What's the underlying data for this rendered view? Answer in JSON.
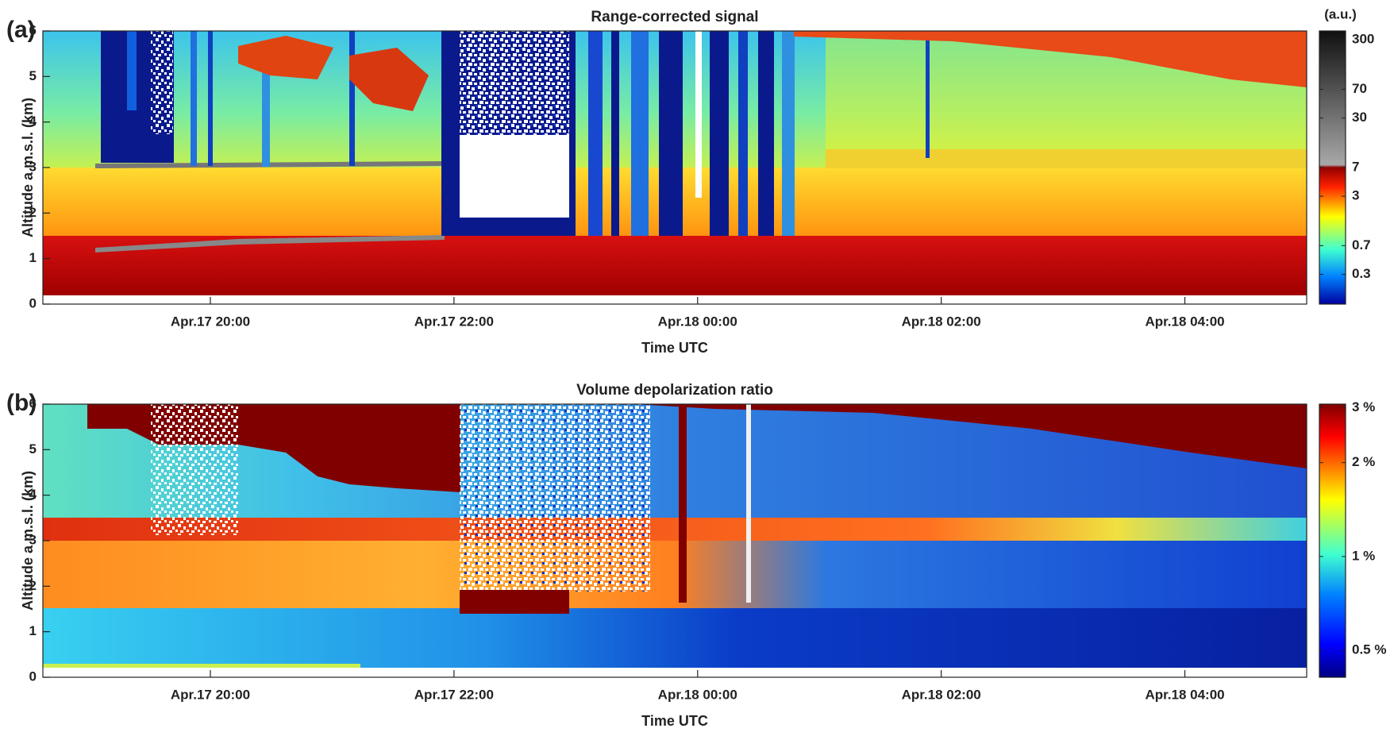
{
  "chart_data": [
    {
      "type": "heatmap",
      "panel_label": "(a)",
      "title": "Range-corrected signal",
      "xlabel": "Time UTC",
      "ylabel": "Altitude a m.s.l. (km)",
      "xlim": [
        18.625,
        29
      ],
      "xticks": [
        {
          "value": 20,
          "label": "Apr.17 20:00"
        },
        {
          "value": 22,
          "label": "Apr.17 22:00"
        },
        {
          "value": 24,
          "label": "Apr.18 00:00"
        },
        {
          "value": 26,
          "label": "Apr.18 02:00"
        },
        {
          "value": 28,
          "label": "Apr.18 04:00"
        }
      ],
      "ylim": [
        0,
        6
      ],
      "yticks": [
        0,
        1,
        2,
        3,
        4,
        5,
        6
      ],
      "colorbar": {
        "label": "(a.u.)",
        "scale": "log",
        "clim": [
          0.125,
          390
        ],
        "colormap": "jet-gray",
        "ticks": [
          0.3,
          0.7,
          3,
          7,
          30,
          70,
          300
        ]
      }
    },
    {
      "type": "heatmap",
      "panel_label": "(b)",
      "title": "Volume  depolarization ratio",
      "xlabel": "Time UTC",
      "ylabel": "Altitude a m.s.l. (km)",
      "xlim": [
        18.625,
        29
      ],
      "xticks": [
        {
          "value": 20,
          "label": "Apr.17 20:00"
        },
        {
          "value": 22,
          "label": "Apr.17 22:00"
        },
        {
          "value": 24,
          "label": "Apr.18 00:00"
        },
        {
          "value": 26,
          "label": "Apr.18 02:00"
        },
        {
          "value": 28,
          "label": "Apr.18 04:00"
        }
      ],
      "ylim": [
        0,
        6
      ],
      "yticks": [
        0,
        1,
        2,
        3,
        4,
        5,
        6
      ],
      "colorbar": {
        "scale": "log",
        "clim": [
          0.41,
          3.08
        ],
        "colormap": "jet",
        "ticks": [
          {
            "value": 0.5,
            "label": "0.5 %"
          },
          {
            "value": 1,
            "label": "1 %"
          },
          {
            "value": 2,
            "label": "2 %"
          },
          {
            "value": 3,
            "label": "3 %"
          }
        ]
      }
    }
  ]
}
